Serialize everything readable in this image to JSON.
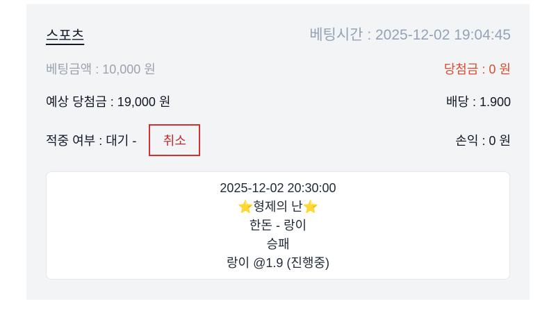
{
  "bet": {
    "title": "스포츠",
    "bet_time": "베팅시간 : 2025-12-02 19:04:45",
    "bet_amount": "베팅금액 : 10,000 원",
    "win_amount": "당첨금 : 0 원",
    "expected_win": "예상 당첨금 : 19,000 원",
    "odds": "배당 : 1.900",
    "hit_status": "적중 여부 : 대기 -",
    "cancel_label": "취소",
    "profit": "손익 : 0 원"
  },
  "detail": {
    "match_time": "2025-12-02 20:30:00",
    "league": "⭐형제의 난⭐",
    "teams": "한돈 - 랑이",
    "market": "승패",
    "pick": "랑이 @1.9 (진행중)"
  },
  "colors": {
    "win": "#dc4a2f",
    "cancel": "#c62828",
    "card_bg": "#f3f4f6"
  }
}
